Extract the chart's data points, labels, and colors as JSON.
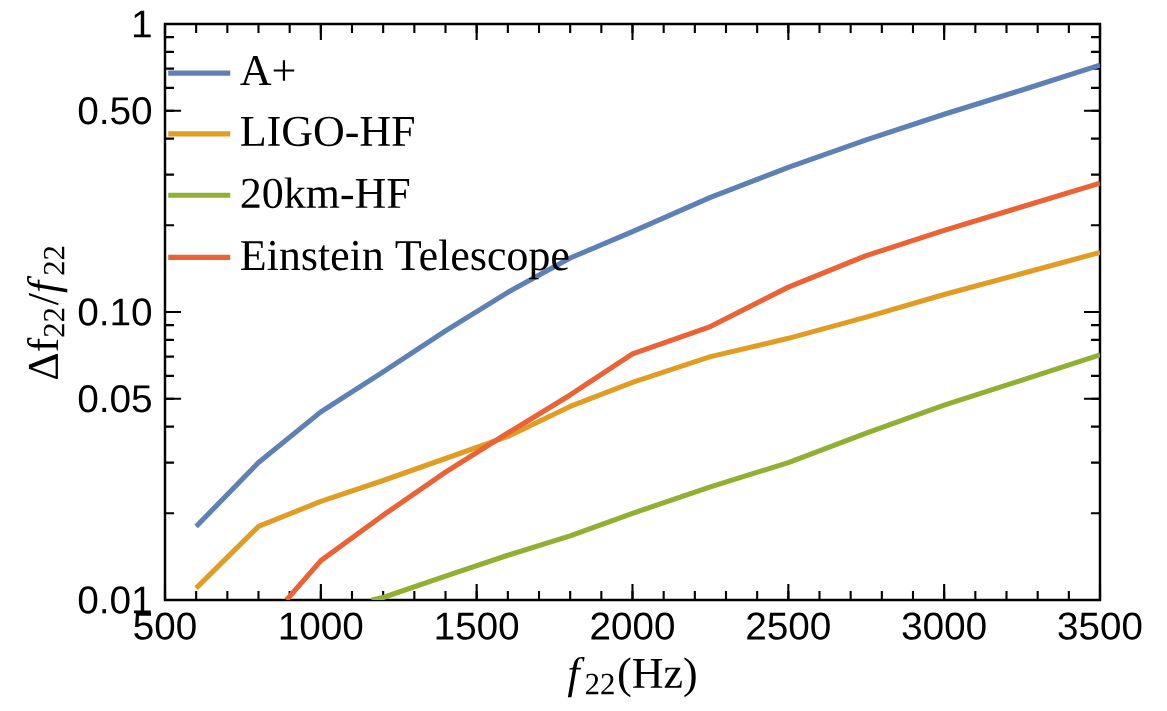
{
  "chart_data": {
    "type": "line",
    "xlabel": "*f*$_{22}$(Hz)",
    "ylabel": "Δf$_{22}$/*f*$_{22}$",
    "log": "y",
    "legend": "top left",
    "line_style": "solid",
    "xlim": [
      500,
      3500
    ],
    "xticks": [
      500,
      1000,
      1500,
      2000,
      2500,
      3000,
      3500
    ],
    "ylim": [
      0.01,
      1
    ],
    "yticks": [
      0.01,
      0.05,
      {
        "value": 0.1,
        "label": "0.10"
      },
      {
        "value": 0.5,
        "label": "0.50"
      },
      1
    ],
    "series": [
      {
        "name": "A+",
        "color": "#5e81b5",
        "x": [
          600,
          800,
          1000,
          1200,
          1400,
          1600,
          1800,
          2000,
          2250,
          2500,
          2750,
          3000,
          3250,
          3500
        ],
        "values": [
          0.018,
          0.03,
          0.045,
          0.062,
          0.086,
          0.117,
          0.154,
          0.19,
          0.25,
          0.318,
          0.396,
          0.486,
          0.59,
          0.72
        ]
      },
      {
        "name": "LIGO-HF",
        "color": "#e19c24",
        "x": [
          600,
          800,
          1000,
          1200,
          1400,
          1600,
          1800,
          2000,
          2250,
          2500,
          2750,
          3000,
          3250,
          3500
        ],
        "values": [
          0.011,
          0.018,
          0.022,
          0.026,
          0.031,
          0.037,
          0.047,
          0.057,
          0.07,
          0.081,
          0.096,
          0.115,
          0.136,
          0.161
        ]
      },
      {
        "name": "20km-HF",
        "color": "#8fb032",
        "x": [
          1163,
          1200,
          1400,
          1600,
          1800,
          2000,
          2250,
          2500,
          2750,
          3000,
          3250,
          3500
        ],
        "values": [
          0.01,
          0.0102,
          0.0121,
          0.0143,
          0.0167,
          0.02,
          0.0247,
          0.03,
          0.038,
          0.0475,
          0.058,
          0.071
        ]
      },
      {
        "name": "Einstein Telescope",
        "color": "#eb6235",
        "x": [
          890,
          1000,
          1200,
          1400,
          1600,
          1800,
          2000,
          2250,
          2500,
          2750,
          3000,
          3250,
          3500
        ],
        "values": [
          0.01,
          0.0137,
          0.0197,
          0.0278,
          0.038,
          0.0515,
          0.0715,
          0.089,
          0.122,
          0.157,
          0.192,
          0.232,
          0.28
        ]
      }
    ]
  }
}
